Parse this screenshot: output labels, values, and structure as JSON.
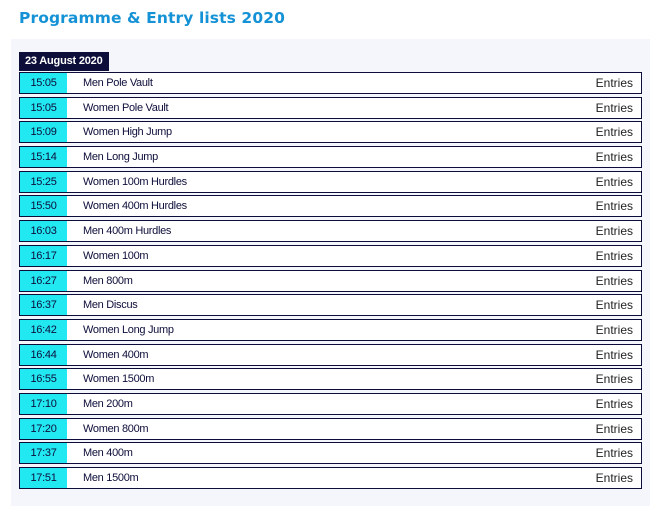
{
  "page": {
    "title": "Programme & Entry lists 2020",
    "date": "23 August 2020",
    "entries_label": "Entries"
  },
  "events": [
    {
      "time": "15:05",
      "name": "Men Pole Vault"
    },
    {
      "time": "15:05",
      "name": "Women Pole Vault"
    },
    {
      "time": "15:09",
      "name": "Women High Jump"
    },
    {
      "time": "15:14",
      "name": "Men Long Jump"
    },
    {
      "time": "15:25",
      "name": "Women 100m Hurdles"
    },
    {
      "time": "15:50",
      "name": "Women 400m Hurdles"
    },
    {
      "time": "16:03",
      "name": "Men 400m Hurdles"
    },
    {
      "time": "16:17",
      "name": "Women 100m"
    },
    {
      "time": "16:27",
      "name": "Men 800m"
    },
    {
      "time": "16:37",
      "name": "Men Discus"
    },
    {
      "time": "16:42",
      "name": "Women Long Jump"
    },
    {
      "time": "16:44",
      "name": "Women 400m"
    },
    {
      "time": "16:55",
      "name": "Women 1500m"
    },
    {
      "time": "17:10",
      "name": "Men 200m"
    },
    {
      "time": "17:20",
      "name": "Women 800m"
    },
    {
      "time": "17:37",
      "name": "Men 400m"
    },
    {
      "time": "17:51",
      "name": "Men 1500m"
    }
  ],
  "colors": {
    "title": "#1592d6",
    "navy": "#0d0d3a",
    "time_cell": "#22e8f2",
    "panel": "#f4f6fb"
  }
}
